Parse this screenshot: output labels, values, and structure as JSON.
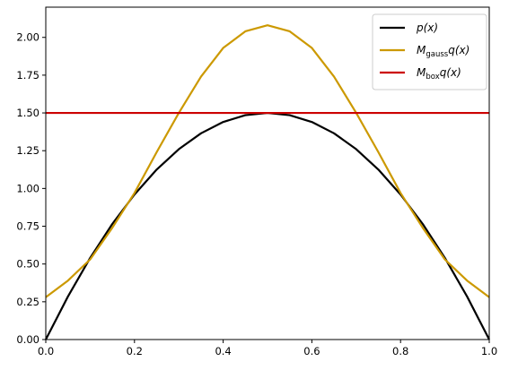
{
  "chart_data": {
    "type": "line",
    "title": "",
    "xlabel": "",
    "ylabel": "",
    "xlim": [
      0.0,
      1.0
    ],
    "ylim": [
      0.0,
      2.2
    ],
    "x_ticks": [
      "0.0",
      "0.2",
      "0.4",
      "0.6",
      "0.8",
      "1.0"
    ],
    "y_ticks": [
      "0.00",
      "0.25",
      "0.50",
      "0.75",
      "1.00",
      "1.25",
      "1.50",
      "1.75",
      "2.00"
    ],
    "grid": false,
    "legend_position": "top-right",
    "series": [
      {
        "name": "p(x)",
        "color": "#000000",
        "x": [
          0.0,
          0.05,
          0.1,
          0.15,
          0.2,
          0.25,
          0.3,
          0.35,
          0.4,
          0.45,
          0.5,
          0.55,
          0.6,
          0.65,
          0.7,
          0.75,
          0.8,
          0.85,
          0.9,
          0.95,
          1.0
        ],
        "y": [
          0.0,
          0.285,
          0.54,
          0.765,
          0.96,
          1.125,
          1.26,
          1.365,
          1.44,
          1.485,
          1.5,
          1.485,
          1.44,
          1.365,
          1.26,
          1.125,
          0.96,
          0.765,
          0.54,
          0.285,
          0.0
        ]
      },
      {
        "name": "M_gauss q(x)",
        "color": "#cc9900",
        "x": [
          0.0,
          0.05,
          0.1,
          0.15,
          0.2,
          0.25,
          0.3,
          0.35,
          0.4,
          0.45,
          0.5,
          0.55,
          0.6,
          0.65,
          0.7,
          0.75,
          0.8,
          0.85,
          0.9,
          0.95,
          1.0
        ],
        "y": [
          0.28,
          0.39,
          0.53,
          0.74,
          0.97,
          1.24,
          1.5,
          1.74,
          1.93,
          2.04,
          2.08,
          2.04,
          1.93,
          1.74,
          1.5,
          1.24,
          0.97,
          0.74,
          0.53,
          0.39,
          0.28
        ]
      },
      {
        "name": "M_box q(x)",
        "color": "#cc0000",
        "x": [
          0.0,
          1.0
        ],
        "y": [
          1.5,
          1.5
        ]
      }
    ]
  },
  "legend": {
    "entries": [
      {
        "main": "p(x)",
        "sub": "",
        "tail": ""
      },
      {
        "main": "M",
        "sub": "gauss",
        "tail": "q(x)"
      },
      {
        "main": "M",
        "sub": "box",
        "tail": "q(x)"
      }
    ]
  }
}
